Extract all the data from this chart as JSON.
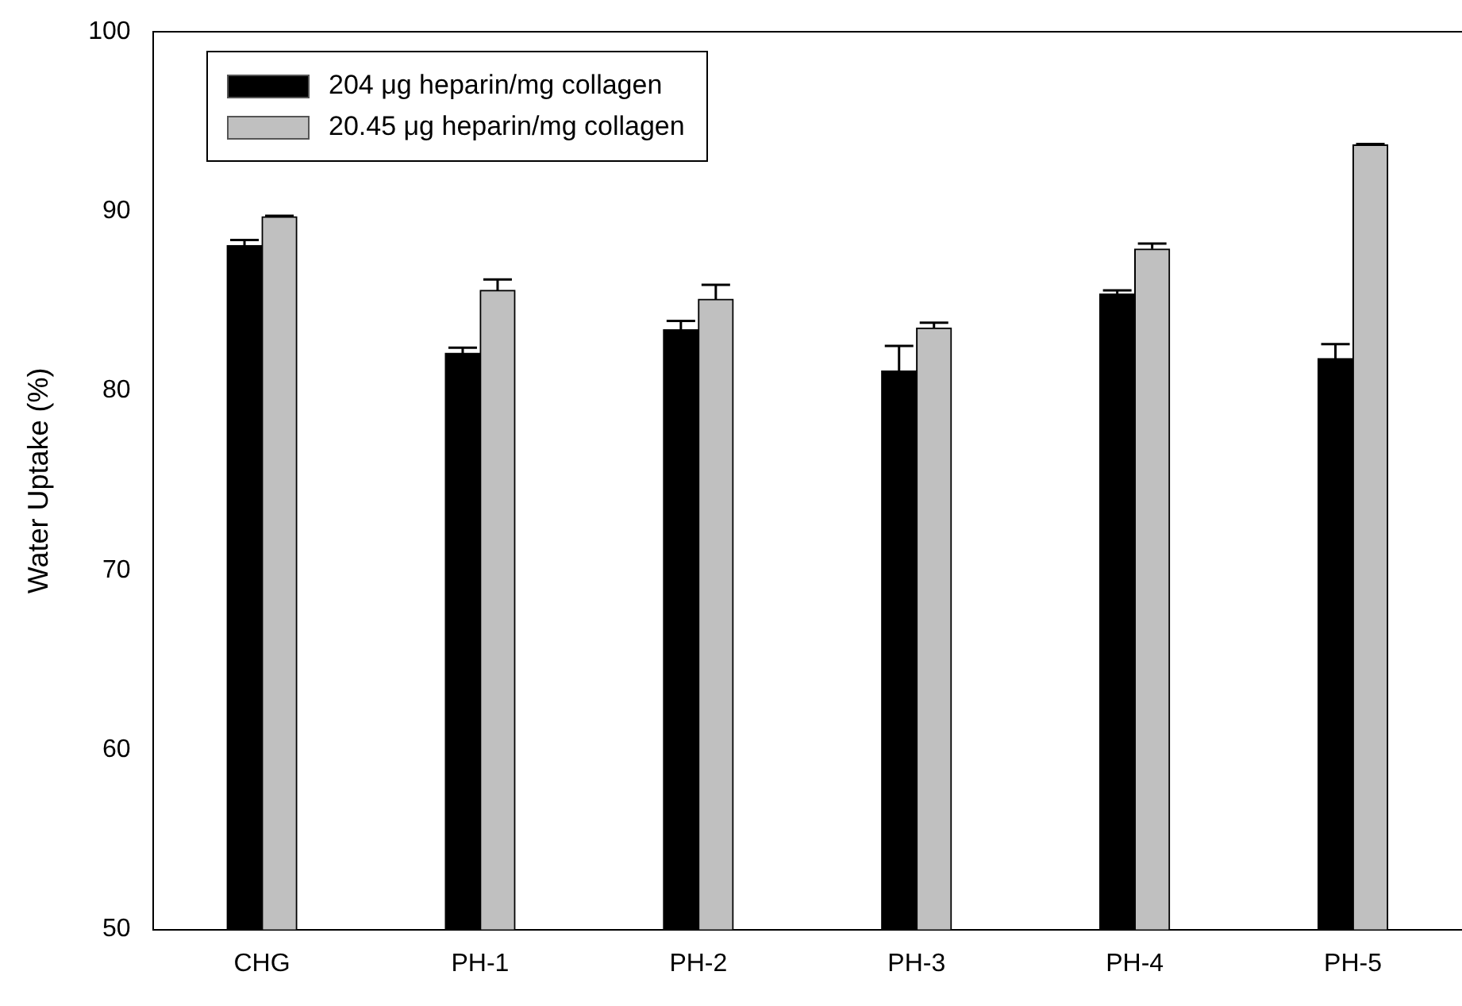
{
  "chart_data": {
    "type": "bar",
    "ylabel": "Water Uptake (%)",
    "categories": [
      "CHG",
      "PH-1",
      "PH-2",
      "PH-3",
      "PH-4",
      "PH-5"
    ],
    "series": [
      {
        "name": "204 μg heparin/mg collagen",
        "color": "#000000",
        "values": [
          88.1,
          82.1,
          83.4,
          81.1,
          85.4,
          81.8
        ],
        "errors": [
          0.3,
          0.3,
          0.5,
          1.4,
          0.2,
          0.8
        ]
      },
      {
        "name": "20.45 μg heparin/mg collagen",
        "color": "#c0c0c0",
        "values": [
          89.7,
          85.6,
          85.1,
          83.5,
          87.9,
          93.7
        ],
        "errors": [
          0.05,
          0.6,
          0.8,
          0.3,
          0.3,
          0.05
        ]
      }
    ],
    "ylim": [
      50,
      100
    ],
    "yticks": [
      50,
      60,
      70,
      80,
      90,
      100
    ],
    "grid": false,
    "legend": "top left"
  }
}
